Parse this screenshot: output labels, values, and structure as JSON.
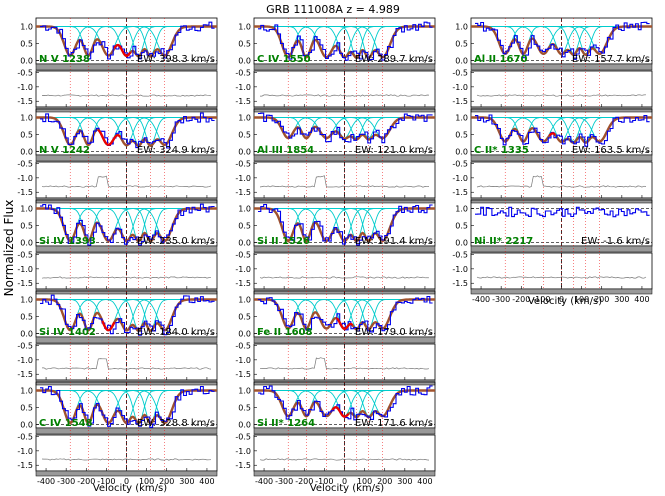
{
  "figure": {
    "title": "GRB 111008A  z = 4.989",
    "ylabel": "Normalized Flux",
    "xlabel": "Velocity (km/s)"
  },
  "chart_data": {
    "type": "line",
    "xlim": [
      -450,
      450
    ],
    "flux_ylim": [
      -0.1,
      1.25
    ],
    "flux_yticks": [
      0.0,
      0.5,
      1.0
    ],
    "resid_ylim": [
      -1.7,
      -0.45
    ],
    "resid_yticks": [
      -0.5,
      -1.0,
      -1.5
    ],
    "xticks": [
      -400,
      -300,
      -200,
      -100,
      0,
      100,
      200,
      300,
      400
    ],
    "colors": {
      "data": "#0000ee",
      "model": "#a0522d",
      "components": "#00cccc",
      "fit_region": "#ee0000",
      "label": "#008000",
      "residual": "#777777",
      "band": "#999999"
    },
    "columns": [
      {
        "panels": [
          {
            "line": "N V 1238",
            "ew": "EW: 398.3 km/s",
            "depth": 0.85,
            "mark_range": [
              -60,
              20
            ]
          },
          {
            "line": "N V 1242",
            "ew": "EW: 324.9 km/s",
            "depth": 0.8,
            "mark_range": [
              -140,
              -30
            ]
          },
          {
            "line": "Si IV 1393",
            "ew": "EW: 235.0 km/s",
            "depth": 0.95,
            "mark_range": null
          },
          {
            "line": "Si IV 1402",
            "ew": "EW: 184.0 km/s",
            "depth": 0.9,
            "mark_range": [
              -120,
              -60
            ]
          },
          {
            "line": "C IV 1548",
            "ew": "EW: 328.8 km/s",
            "depth": 0.95,
            "mark_range": null
          }
        ]
      },
      {
        "panels": [
          {
            "line": "C IV 1550",
            "ew": "EW: 289.7 km/s",
            "depth": 0.9,
            "mark_range": null
          },
          {
            "line": "Al III 1854",
            "ew": "EW: 121.0 km/s",
            "depth": 0.6,
            "mark_range": null
          },
          {
            "line": "Si II 1526",
            "ew": "EW: 191.4 km/s",
            "depth": 0.95,
            "mark_range": null
          },
          {
            "line": "Fe II 1608",
            "ew": "EW: 179.0 km/s",
            "depth": 0.85,
            "mark_range": [
              -40,
              40
            ]
          },
          {
            "line": "Si II* 1264",
            "ew": "EW: 171.6 km/s",
            "depth": 0.75,
            "mark_range": [
              -60,
              20
            ]
          }
        ]
      },
      {
        "panels": [
          {
            "line": "Al II 1670",
            "ew": "EW: 157.7 km/s",
            "depth": 0.8,
            "mark_range": null
          },
          {
            "line": "C II* 1335",
            "ew": "EW: 163.5 km/s",
            "depth": 0.7,
            "mark_range": [
              -60,
              -30
            ]
          },
          {
            "line": "Ni II* 2217",
            "ew": "EW: -1.6 km/s",
            "depth": 0.0,
            "mark_range": null
          }
        ]
      }
    ],
    "component_velocities": [
      -280,
      -190,
      -90,
      0,
      60,
      120,
      190
    ],
    "component_widths": [
      30,
      25,
      35,
      30,
      25,
      25,
      35
    ]
  }
}
